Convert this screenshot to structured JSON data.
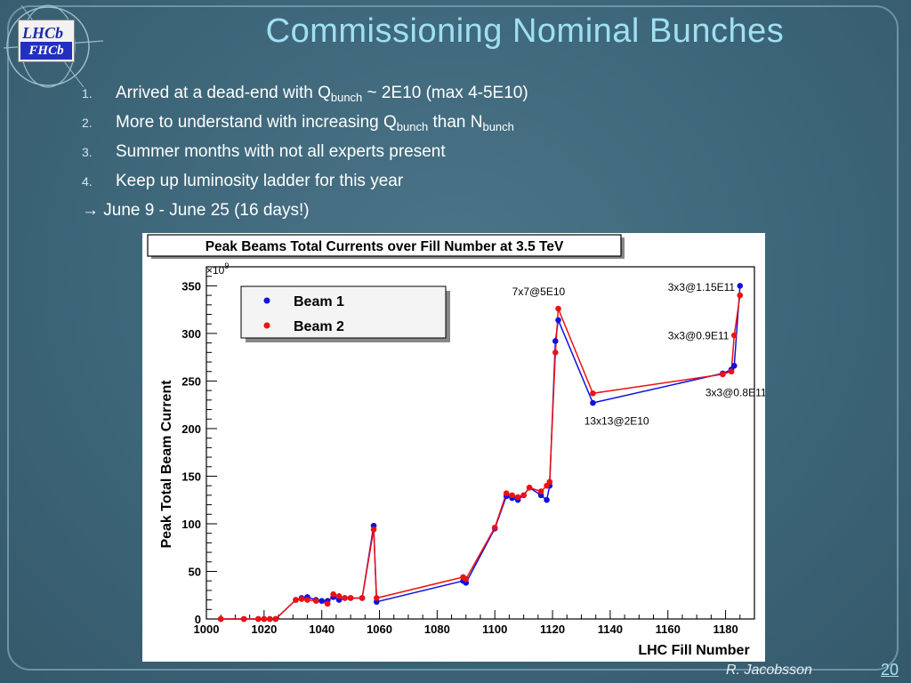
{
  "slide": {
    "title": "Commissioning Nominal Bunches",
    "bullets": [
      {
        "num": "1.",
        "pre": "Arrived at a dead-end with Q",
        "sub": "bunch",
        "post": " ~ 2E10 (max 4-5E10)"
      },
      {
        "num": "2.",
        "pre": "More to understand with increasing Q",
        "sub": "bunch",
        "post": " than N",
        "sub2": "bunch"
      },
      {
        "num": "3.",
        "pre": "Summer months with not all experts present"
      },
      {
        "num": "4.",
        "pre": "Keep up luminosity ladder for this year"
      }
    ],
    "arrow_line": "→ June 9  - June 25 (16 days!)",
    "author": "R. Jacobsson",
    "page_number": "20",
    "logo_top": "LHCb",
    "logo_bottom": "FHCb"
  },
  "colors": {
    "beam1": "#1010e0",
    "beam2": "#ee1111",
    "title": "#9fe0f2"
  },
  "chart_data": {
    "type": "scatter",
    "title": "Peak Beams Total Currents over Fill Number at 3.5 TeV",
    "xlabel": "LHC Fill Number",
    "ylabel": "Peak Total Beam Current",
    "y_multiplier": "×10",
    "y_multiplier_exp": "9",
    "xlim": [
      1000,
      1190
    ],
    "ylim": [
      0,
      370
    ],
    "xticks": [
      1000,
      1020,
      1040,
      1060,
      1080,
      1100,
      1120,
      1140,
      1160,
      1180
    ],
    "yticks": [
      0,
      50,
      100,
      150,
      200,
      250,
      300,
      350
    ],
    "legend_position": "top-left",
    "series": [
      {
        "name": "Beam 1",
        "color": "#1010e0",
        "x": [
          1005,
          1013,
          1018,
          1020,
          1022,
          1024,
          1031,
          1033,
          1035,
          1038,
          1040,
          1042,
          1044,
          1046,
          1048,
          1050,
          1054,
          1058,
          1059,
          1089,
          1090,
          1100,
          1104,
          1106,
          1108,
          1110,
          1112,
          1116,
          1118,
          1119,
          1121,
          1122,
          1134,
          1179,
          1182,
          1183,
          1185
        ],
        "y": [
          0,
          0,
          0,
          0,
          0,
          0,
          20,
          22,
          23,
          20,
          19,
          19,
          23,
          20,
          22,
          22,
          22,
          98,
          18,
          40,
          38,
          95,
          129,
          127,
          125,
          130,
          138,
          130,
          125,
          140,
          292,
          314,
          227,
          258,
          262,
          266,
          350
        ]
      },
      {
        "name": "Beam 2",
        "color": "#ee1111",
        "x": [
          1005,
          1013,
          1018,
          1020,
          1022,
          1024,
          1031,
          1033,
          1035,
          1038,
          1042,
          1044,
          1046,
          1048,
          1050,
          1054,
          1058,
          1059,
          1089,
          1090,
          1100,
          1104,
          1106,
          1108,
          1110,
          1112,
          1116,
          1118,
          1119,
          1121,
          1122,
          1134,
          1179,
          1182,
          1183,
          1185
        ],
        "y": [
          0,
          0,
          0,
          0,
          0,
          0,
          20,
          21,
          20,
          19,
          16,
          26,
          24,
          22,
          22,
          22,
          94,
          22,
          44,
          42,
          96,
          132,
          130,
          128,
          130,
          138,
          134,
          140,
          144,
          280,
          326,
          237,
          257,
          260,
          298,
          340
        ]
      }
    ],
    "annotations": [
      {
        "text": "7x7@5E10",
        "x": 1106,
        "y": 340
      },
      {
        "text": "3x3@1.15E11",
        "x": 1160,
        "y": 345
      },
      {
        "text": "3x3@0.9E11",
        "x": 1160,
        "y": 294
      },
      {
        "text": "3x3@0.8E11",
        "x": 1173,
        "y": 234
      },
      {
        "text": "13x13@2E10",
        "x": 1131,
        "y": 204
      }
    ]
  }
}
